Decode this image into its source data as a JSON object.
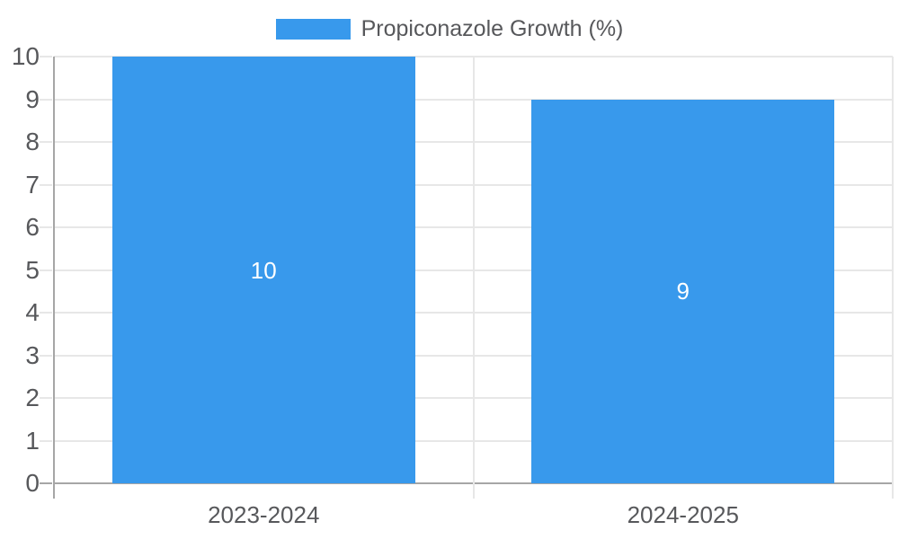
{
  "chart_data": {
    "type": "bar",
    "title": "",
    "legend_label": "Propiconazole Growth (%)",
    "legend_position": "top",
    "categories": [
      "2023-2024",
      "2024-2025"
    ],
    "values": [
      10,
      9
    ],
    "data_labels": [
      "10",
      "9"
    ],
    "xlabel": "",
    "ylabel": "",
    "ylim": [
      0,
      10
    ],
    "ytick_interval": 1,
    "yticks": [
      0,
      1,
      2,
      3,
      4,
      5,
      6,
      7,
      8,
      9,
      10
    ],
    "grid": true,
    "colors": {
      "bar": "#3899EC",
      "bar_label": "#FFFFFF",
      "tick_label": "#57585B",
      "legend_text": "#57585B",
      "gridline": "#E7E7E7",
      "axis_line": "#A6A6A6",
      "background": "#FFFFFF"
    }
  }
}
